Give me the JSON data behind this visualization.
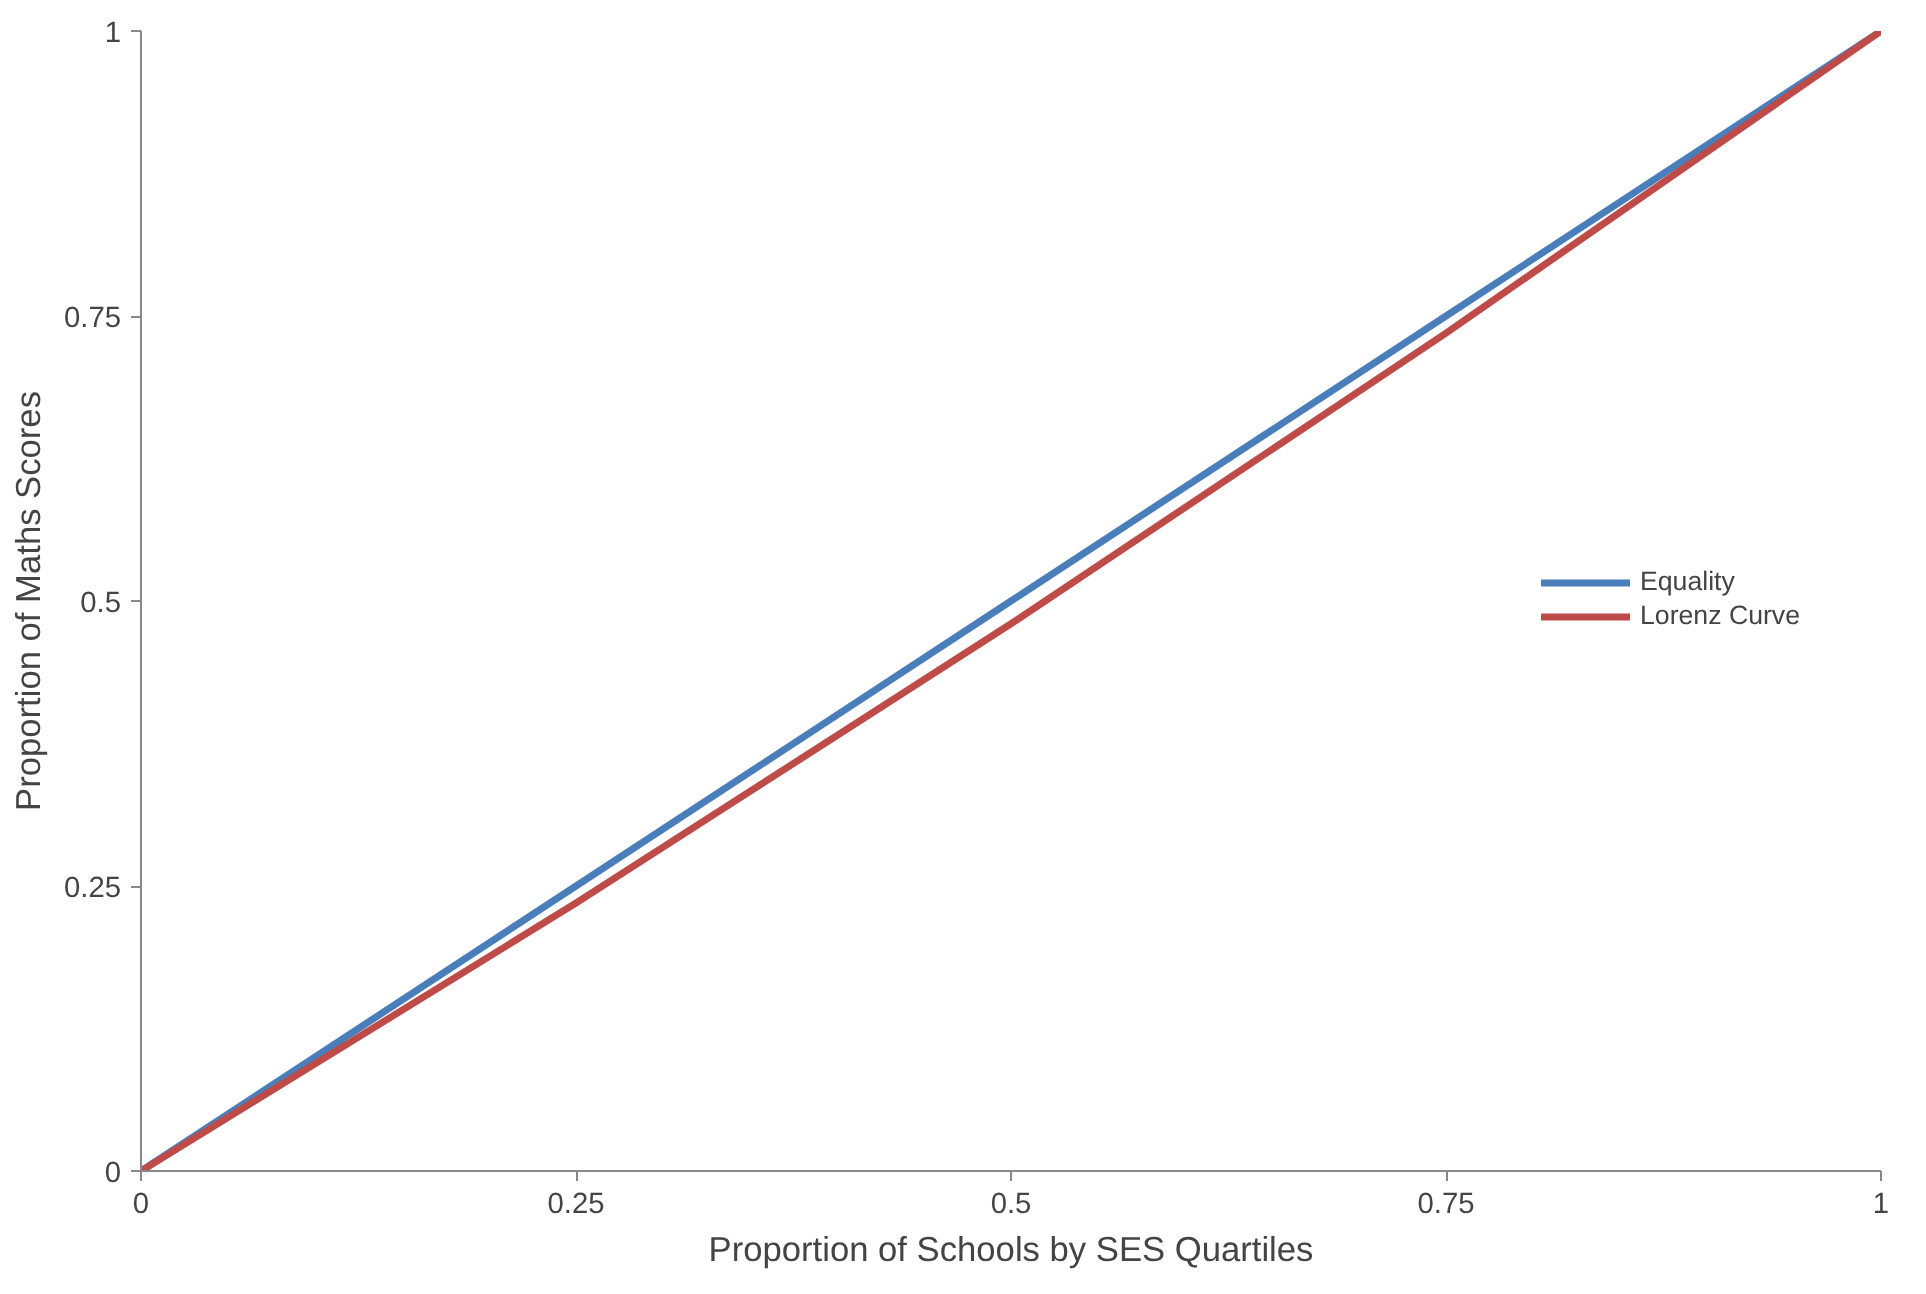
{
  "chart_data": {
    "type": "line",
    "xlabel": "Proportion of Schools by SES Quartiles",
    "ylabel": "Proportion of Maths Scores",
    "x": [
      0,
      0.25,
      0.5,
      0.75,
      1
    ],
    "series": [
      {
        "name": "Equality",
        "color": "#4a7ebb",
        "values": [
          0,
          0.25,
          0.5,
          0.75,
          1
        ]
      },
      {
        "name": "Lorenz Curve",
        "color": "#be4b48",
        "values": [
          0,
          0.235,
          0.48,
          0.735,
          1
        ]
      }
    ],
    "xlim": [
      0,
      1
    ],
    "ylim": [
      0,
      1
    ],
    "xticks": [
      0,
      0.25,
      0.5,
      0.75,
      1
    ],
    "yticks": [
      0,
      0.25,
      0.5,
      0.75,
      1
    ],
    "grid": false,
    "legend": "right",
    "marker": "none",
    "line_style": "solid"
  }
}
